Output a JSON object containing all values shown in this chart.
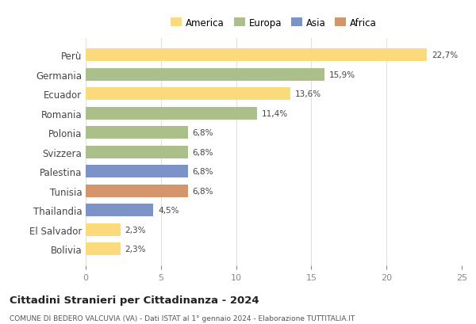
{
  "countries": [
    "Perù",
    "Germania",
    "Ecuador",
    "Romania",
    "Polonia",
    "Svizzera",
    "Palestina",
    "Tunisia",
    "Thailandia",
    "El Salvador",
    "Bolivia"
  ],
  "values": [
    22.7,
    15.9,
    13.6,
    11.4,
    6.8,
    6.8,
    6.8,
    6.8,
    4.5,
    2.3,
    2.3
  ],
  "labels": [
    "22,7%",
    "15,9%",
    "13,6%",
    "11,4%",
    "6,8%",
    "6,8%",
    "6,8%",
    "6,8%",
    "4,5%",
    "2,3%",
    "2,3%"
  ],
  "colors": [
    "#FADA7A",
    "#ABBF8A",
    "#FADA7A",
    "#ABBF8A",
    "#ABBF8A",
    "#ABBF8A",
    "#7B93C8",
    "#D4956A",
    "#7B93C8",
    "#FADA7A",
    "#FADA7A"
  ],
  "legend": [
    {
      "label": "America",
      "color": "#FADA7A"
    },
    {
      "label": "Europa",
      "color": "#ABBF8A"
    },
    {
      "label": "Asia",
      "color": "#7B93C8"
    },
    {
      "label": "Africa",
      "color": "#D4956A"
    }
  ],
  "xlim": [
    0,
    25
  ],
  "xticks": [
    0,
    5,
    10,
    15,
    20,
    25
  ],
  "title": "Cittadini Stranieri per Cittadinanza - 2024",
  "subtitle": "COMUNE DI BEDERO VALCUVIA (VA) - Dati ISTAT al 1° gennaio 2024 - Elaborazione TUTTITALIA.IT",
  "bg_color": "#ffffff",
  "grid_color": "#e0e0e0",
  "bar_height": 0.65
}
